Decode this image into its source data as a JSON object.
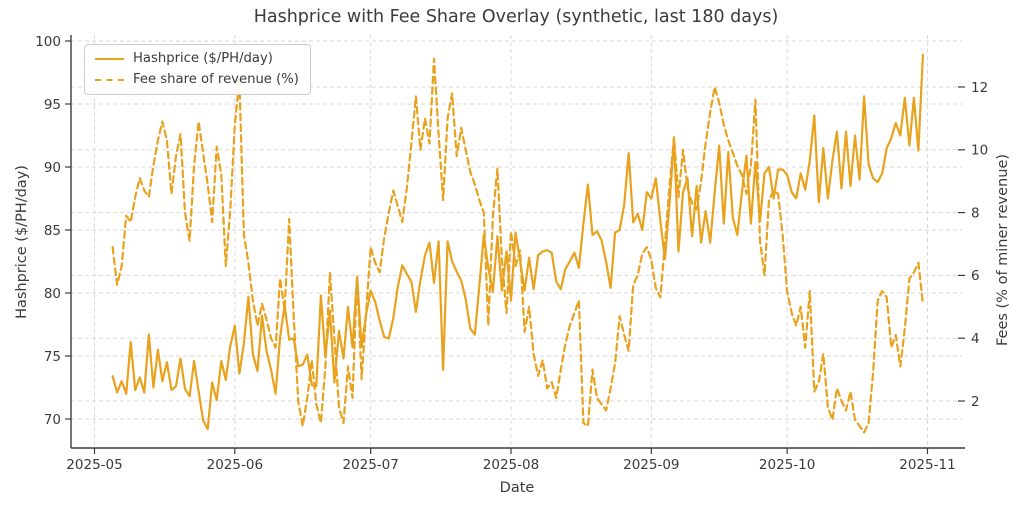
{
  "colors": {
    "line": "#E8A21E",
    "grid": "#d7d7d7",
    "spine": "#3b3b3b",
    "text": "#3a3a3a",
    "background": "#ffffff",
    "legend_border": "#cccccc"
  },
  "chart_data": {
    "type": "line",
    "title": "Hashprice with Fee Share Overlay (synthetic, last 180 days)",
    "xlabel": "Date",
    "grid": "on, dashed",
    "legend_position": "upper left",
    "dates": {
      "start": "2025-05-05",
      "end": "2025-10-31",
      "frequency": "daily",
      "n_points": 180
    },
    "x_ticks": [
      {
        "label": "2025-05",
        "day": 0
      },
      {
        "label": "2025-06",
        "day": 31
      },
      {
        "label": "2025-07",
        "day": 61
      },
      {
        "label": "2025-08",
        "day": 92
      },
      {
        "label": "2025-09",
        "day": 123
      },
      {
        "label": "2025-10",
        "day": 153
      },
      {
        "label": "2025-11",
        "day": 184
      }
    ],
    "left_axis": {
      "label": "Hashprice ($/PH/day)",
      "ticks": [
        70,
        75,
        80,
        85,
        90,
        95,
        100
      ],
      "range": [
        67.9,
        100.5
      ]
    },
    "right_axis": {
      "label": "Fees (% of miner revenue)",
      "ticks": [
        2,
        4,
        6,
        8,
        10,
        12
      ],
      "range": [
        0.45,
        13.6
      ]
    },
    "series": [
      {
        "name": "Hashprice ($/PH/day)",
        "axis": "left",
        "style": "solid",
        "values": [
          73.4,
          72.1,
          73.0,
          72.0,
          76.1,
          72.3,
          73.3,
          72.1,
          76.7,
          72.5,
          75.5,
          73.0,
          74.5,
          72.3,
          72.6,
          74.8,
          72.4,
          71.8,
          74.6,
          72.2,
          69.9,
          69.2,
          72.9,
          71.5,
          74.6,
          73.1,
          75.8,
          77.4,
          73.6,
          76.0,
          79.7,
          75.1,
          73.8,
          78.2,
          75.4,
          73.9,
          72.0,
          76.5,
          79.0,
          76.3,
          76.4,
          74.2,
          74.3,
          75.1,
          72.7,
          72.6,
          79.8,
          74.9,
          78.6,
          72.9,
          77.0,
          74.8,
          78.9,
          75.7,
          81.3,
          75.7,
          78.3,
          80.2,
          79.3,
          77.8,
          76.5,
          76.4,
          78.0,
          80.5,
          82.2,
          81.5,
          80.9,
          78.5,
          81.0,
          83.0,
          84.0,
          80.8,
          84.1,
          73.9,
          84.1,
          82.5,
          81.7,
          81.0,
          79.5,
          77.2,
          76.7,
          80.5,
          84.6,
          82.0,
          80.1,
          84.5,
          80.2,
          83.3,
          79.4,
          84.8,
          82.6,
          80.2,
          82.8,
          80.3,
          83.0,
          83.3,
          83.4,
          83.2,
          80.9,
          80.3,
          81.9,
          82.5,
          83.2,
          82.0,
          85.5,
          88.6,
          84.6,
          84.9,
          84.2,
          82.5,
          80.4,
          84.8,
          85.0,
          87.0,
          91.1,
          85.6,
          86.3,
          85.0,
          88.0,
          87.5,
          89.1,
          85.7,
          82.7,
          87.0,
          92.2,
          83.3,
          88.0,
          89.1,
          84.5,
          88.5,
          84.0,
          86.5,
          84.0,
          88.0,
          91.7,
          85.5,
          91.2,
          86.0,
          84.6,
          88.0,
          90.9,
          85.5,
          90.4,
          85.7,
          89.5,
          90.0,
          87.5,
          89.8,
          89.8,
          89.4,
          88.0,
          87.5,
          89.5,
          88.2,
          90.5,
          94.1,
          87.2,
          91.5,
          87.5,
          90.5,
          92.8,
          88.3,
          92.8,
          88.5,
          92.5,
          89.0,
          95.6,
          90.2,
          89.1,
          88.8,
          89.5,
          91.5,
          92.3,
          93.5,
          92.5,
          95.5,
          91.7,
          95.5,
          91.3,
          98.9
        ]
      },
      {
        "name": "Fee share of revenue (%)",
        "axis": "right",
        "style": "dashed",
        "values": [
          6.9,
          5.7,
          6.3,
          7.9,
          7.7,
          8.5,
          9.1,
          8.7,
          8.5,
          9.5,
          10.3,
          10.9,
          10.3,
          8.6,
          9.8,
          10.5,
          8.0,
          7.1,
          9.5,
          10.9,
          9.9,
          8.9,
          7.7,
          10.1,
          9.2,
          6.3,
          8.1,
          10.8,
          12.2,
          7.3,
          6.4,
          5.2,
          4.4,
          5.1,
          4.6,
          4.0,
          3.7,
          5.9,
          4.9,
          7.8,
          4.7,
          2.0,
          1.2,
          2.1,
          3.3,
          1.9,
          1.3,
          3.1,
          6.1,
          4.0,
          1.8,
          1.3,
          3.1,
          2.1,
          6.0,
          2.7,
          4.8,
          6.9,
          6.4,
          6.1,
          7.2,
          8.0,
          8.7,
          8.2,
          7.7,
          8.8,
          10.2,
          11.7,
          10.0,
          11.0,
          10.2,
          12.9,
          10.5,
          8.4,
          11.0,
          11.8,
          9.8,
          10.7,
          10.0,
          9.3,
          8.9,
          8.4,
          8.0,
          4.4,
          7.9,
          9.4,
          6.5,
          4.8,
          7.4,
          6.3,
          6.8,
          4.2,
          5.0,
          3.5,
          2.8,
          3.3,
          2.4,
          2.6,
          2.1,
          3.0,
          3.8,
          4.4,
          4.8,
          5.2,
          1.3,
          1.2,
          3.0,
          2.1,
          1.9,
          1.7,
          2.4,
          3.2,
          4.7,
          4.1,
          3.6,
          5.7,
          6.0,
          6.7,
          6.9,
          6.5,
          5.6,
          5.3,
          7.0,
          8.8,
          10.4,
          8.5,
          10.0,
          8.8,
          8.3,
          8.1,
          9.0,
          10.2,
          11.2,
          12.0,
          11.5,
          10.8,
          10.3,
          9.9,
          9.5,
          9.2,
          8.6,
          9.5,
          11.6,
          7.1,
          6.0,
          8.4,
          8.7,
          8.6,
          7.3,
          5.5,
          4.8,
          4.4,
          5.0,
          3.7,
          5.5,
          2.3,
          2.6,
          3.5,
          1.8,
          1.4,
          2.4,
          2.0,
          1.7,
          2.3,
          1.4,
          1.2,
          1.0,
          1.3,
          2.9,
          5.2,
          5.5,
          5.3,
          3.7,
          4.1,
          3.1,
          4.3,
          5.9,
          6.1,
          6.4,
          5.1
        ]
      }
    ]
  }
}
